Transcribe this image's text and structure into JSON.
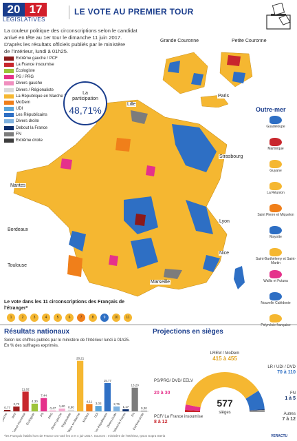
{
  "header": {
    "year_left": "20",
    "year_right": "17",
    "election": "LÉGISLATIVES",
    "title": "LE VOTE AU PREMIER TOUR"
  },
  "intro": {
    "line1": "La couleur politique des circonscriptions selon le candidat",
    "line2": "arrivé en tête au 1er tour le dimanche 11 juin 2017.",
    "line3": "D'après les résultats officiels publiés par le ministère",
    "line4": "de l'Intérieur, lundi à 01h25."
  },
  "legend": [
    {
      "label": "Extrême gauche / PCF",
      "color": "#8b1a1a"
    },
    {
      "label": "La France insoumise",
      "color": "#c8272d"
    },
    {
      "label": "Écologiste",
      "color": "#9dc43a"
    },
    {
      "label": "PS / PRG",
      "color": "#e5318b"
    },
    {
      "label": "Divers gauche",
      "color": "#f08fbf"
    },
    {
      "label": "Divers / Régionaliste",
      "color": "#d9d9d9"
    },
    {
      "label": "La République en Marche !",
      "color": "#f5b731"
    },
    {
      "label": "MoDem",
      "color": "#f07f1a"
    },
    {
      "label": "UDI",
      "color": "#5aa5d9"
    },
    {
      "label": "Les Républicains",
      "color": "#2e6fc4"
    },
    {
      "label": "Divers droite",
      "color": "#7fb2e0"
    },
    {
      "label": "Debout la France",
      "color": "#0c2d6b"
    },
    {
      "label": "FN",
      "color": "#7c7c7c"
    },
    {
      "label": "Extrême droite",
      "color": "#3d3d3d"
    }
  ],
  "turnout": {
    "label1": "La",
    "label2": "participation",
    "value": "48,71%"
  },
  "cities": {
    "lille": "Lille",
    "strasbourg": "Strasbourg",
    "nantes": "Nantes",
    "bordeaux": "Bordeaux",
    "lyon": "Lyon",
    "toulouse": "Toulouse",
    "marseille": "Marseille",
    "nice": "Nice"
  },
  "insets": {
    "grande": "Grande Couronne",
    "petite": "Petite Couronne",
    "paris": "Paris"
  },
  "outremer": {
    "title": "Outre-mer",
    "territories": [
      "Guadeloupe",
      "Martinique",
      "Guyane",
      "La Réunion",
      "Saint Pierre et Miquelon",
      "Mayotte",
      "Saint-Barthélemy et Saint-Martin",
      "Wallis et Futuna",
      "Nouvelle Calédonie",
      "Polynésie française"
    ]
  },
  "abroad": {
    "title": "Le vote dans les 11 circonscriptions des Français de l'étranger*",
    "circles": [
      {
        "n": "1",
        "color": "#f5b731"
      },
      {
        "n": "2",
        "color": "#f5b731"
      },
      {
        "n": "3",
        "color": "#f5b731"
      },
      {
        "n": "4",
        "color": "#f5b731"
      },
      {
        "n": "5",
        "color": "#f5b731"
      },
      {
        "n": "6",
        "color": "#f5b731"
      },
      {
        "n": "7",
        "color": "#f07f1a"
      },
      {
        "n": "8",
        "color": "#f5b731"
      },
      {
        "n": "9",
        "color": "#2e6fc4"
      },
      {
        "n": "10",
        "color": "#f5b731"
      },
      {
        "n": "11",
        "color": "#f5b731"
      }
    ]
  },
  "results": {
    "title": "Résultats nationaux",
    "sub1": "Selon les chiffres publiés par le ministère de l'Intérieur lundi à 01h25.",
    "sub2": "En % des suffrages exprimés."
  },
  "chart_data": {
    "type": "bar",
    "categories": [
      "Extrême gauche",
      "PCF",
      "La France insoumise",
      "Écologiste",
      "PS",
      "PRG",
      "Divers gauche",
      "Régionaliste",
      "La République en Marche",
      "MoDem",
      "UDI",
      "Les Républicains",
      "Divers droite",
      "Debout la France",
      "FN",
      "Extrême droite"
    ],
    "values": [
      0.77,
      2.72,
      11.02,
      4.3,
      7.44,
      0.47,
      1.6,
      0.9,
      28.21,
      4.11,
      3.03,
      15.77,
      2.76,
      1.17,
      13.2,
      0.3
    ],
    "colors": [
      "#8b1a1a",
      "#a01d1d",
      "#c8272d",
      "#9dc43a",
      "#e5318b",
      "#f08fbf",
      "#f4a9cf",
      "#d9d9d9",
      "#f5b731",
      "#f07f1a",
      "#5aa5d9",
      "#2e6fc4",
      "#7fb2e0",
      "#0c2d6b",
      "#7c7c7c",
      "#3d3d3d"
    ],
    "ylim": [
      0,
      30
    ]
  },
  "projection": {
    "title": "Projections en sièges",
    "total": "577",
    "total_label": "sièges",
    "segments": [
      {
        "label": "PCF/ La France insoumise",
        "value": "8 à 12",
        "color": "#c8272d",
        "seats": 10
      },
      {
        "label": "PS/PRG/ DVD/ EELV",
        "value": "20 à 30",
        "color": "#e5318b",
        "seats": 25
      },
      {
        "label": "LREM / MoDem",
        "value": "415 à 455",
        "color": "#f5b731",
        "seats": 435
      },
      {
        "label": "LR / UDI / DVD",
        "value": "70 à 110",
        "color": "#2e6fc4",
        "seats": 90
      },
      {
        "label": "FN",
        "value": "1 à 5",
        "color": "#0c2d6b",
        "seats": 3
      },
      {
        "label": "Autres",
        "value": "7 à 12",
        "color": "#999999",
        "seats": 10
      }
    ]
  },
  "footer": "*les Français établis hors de France ont voté les 3 et 4 juin 2017. Sources : ministère de l'Intérieur, Ipsos Sopra Steria",
  "credit": "VERACTU"
}
